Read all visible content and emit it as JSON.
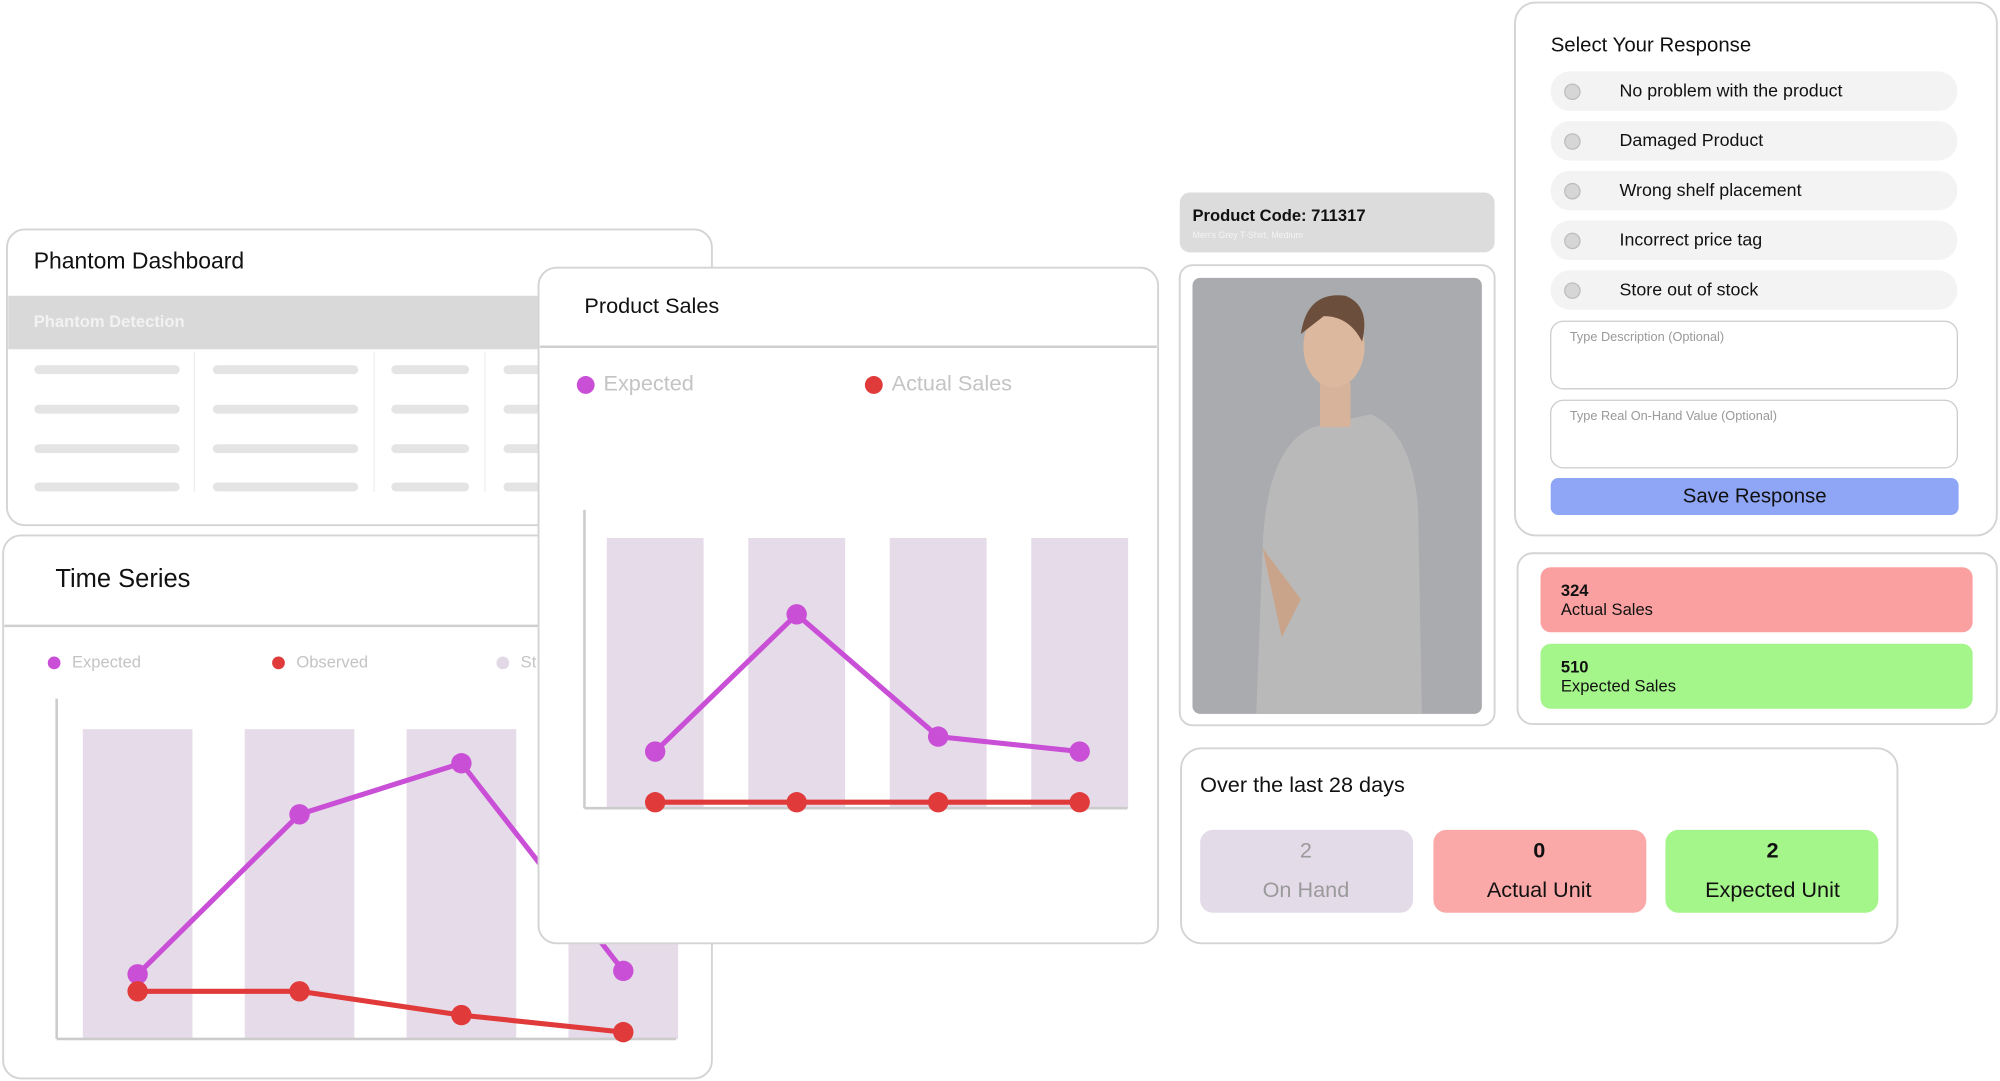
{
  "dashboard": {
    "title": "Phantom Dashboard",
    "table_header": "Phantom Detection"
  },
  "time_series": {
    "title": "Time Series",
    "series": [
      {
        "name": "Expected",
        "color": "#c94fd6",
        "values": [
          19,
          66,
          81,
          20
        ]
      },
      {
        "name": "Observed",
        "color": "#e03a3a",
        "values": [
          14,
          14,
          7,
          2
        ]
      },
      {
        "name": "St",
        "color": "#e2d8e6"
      }
    ],
    "ylim": [
      0,
      100
    ]
  },
  "product_sales": {
    "title": "Product Sales",
    "series": [
      {
        "name": "Expected",
        "color": "#c94fd6",
        "values": [
          19,
          65,
          24,
          19
        ]
      },
      {
        "name": "Actual Sales",
        "color": "#e03a3a",
        "values": [
          2,
          2,
          2,
          2
        ]
      }
    ],
    "ylim": [
      0,
      100
    ]
  },
  "product": {
    "code": "Product Code: 711317",
    "description": "Men's Grey T-Shirt, Medium"
  },
  "response": {
    "title": "Select Your Response",
    "options": [
      "No problem with the product",
      "Damaged Product",
      "Wrong shelf placement",
      "Incorrect price tag",
      "Store out of stock"
    ],
    "description_placeholder": "Type Description (Optional)",
    "onhand_placeholder": "Type Real On-Hand Value (Optional)",
    "button": "Save Response"
  },
  "sales_stats": [
    {
      "value": 324,
      "label": "Actual Sales"
    },
    {
      "value": 510,
      "label": "Expected Sales"
    }
  ],
  "last_days": {
    "title": "Over the last 28 days",
    "stats": [
      {
        "value": 2,
        "label": "On Hand"
      },
      {
        "value": 0,
        "label": "Actual Unit"
      },
      {
        "value": 2,
        "label": "Expected Unit"
      }
    ]
  }
}
